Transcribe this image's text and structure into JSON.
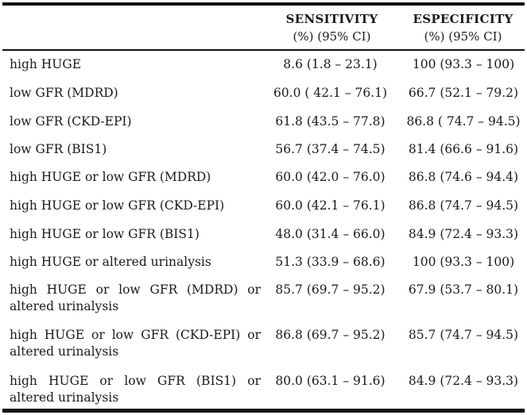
{
  "header": {
    "sensitivity_title": "SENSITIVITY",
    "sensitivity_sub": "(%) (95% CI)",
    "specificity_title": "ESPECIFICITY",
    "specificity_sub": "(%) (95% CI)"
  },
  "rows": [
    {
      "label": "high HUGE",
      "sensitivity": "8.6 (1.8 – 23.1)",
      "specificity": "100 (93.3 – 100)"
    },
    {
      "label": "low GFR (MDRD)",
      "sensitivity": "60.0 ( 42.1 – 76.1)",
      "specificity": "66.7 (52.1 – 79.2)"
    },
    {
      "label": "low GFR (CKD-EPI)",
      "sensitivity": "61.8 (43.5 – 77.8)",
      "specificity": "86.8 ( 74.7 – 94.5)"
    },
    {
      "label": "low GFR (BIS1)",
      "sensitivity": "56.7 (37.4 – 74.5)",
      "specificity": "81.4 (66.6 – 91.6)"
    },
    {
      "label": "high HUGE or low GFR (MDRD)",
      "sensitivity": "60.0 (42.0 – 76.0)",
      "specificity": "86.8 (74.6 – 94.4)"
    },
    {
      "label": "high HUGE or low GFR (CKD-EPI)",
      "sensitivity": "60.0 (42.1 – 76.1)",
      "specificity": "86.8 (74.7 – 94.5)"
    },
    {
      "label": "high HUGE or low GFR (BIS1)",
      "sensitivity": "48.0 (31.4 – 66.0)",
      "specificity": "84.9 (72.4 – 93.3)"
    },
    {
      "label": "high HUGE or altered urinalysis",
      "sensitivity": "51.3 (33.9 – 68.6)",
      "specificity": "100 (93.3 – 100)"
    },
    {
      "label": "high HUGE or low GFR (MDRD) or altered urinalysis",
      "sensitivity": "85.7 (69.7 – 95.2)",
      "specificity": "67.9 (53.7 – 80.1)"
    },
    {
      "label": "high HUGE or low GFR (CKD-EPI) or altered urinalysis",
      "sensitivity": "86.8 (69.7 – 95.2)",
      "specificity": "85.7 (74.7 – 94.5)"
    },
    {
      "label": "high HUGE or low GFR (BIS1) or altered urinalysis",
      "sensitivity": "80.0 (63.1 – 91.6)",
      "specificity": "84.9 (72.4 – 93.3)"
    }
  ]
}
